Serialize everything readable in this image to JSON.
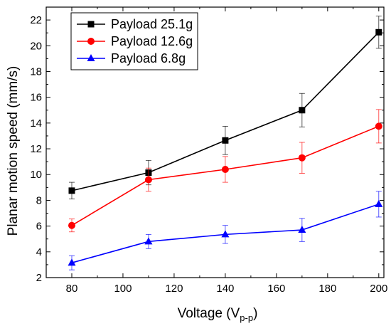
{
  "chart_data": {
    "type": "line",
    "x": [
      80,
      110,
      140,
      170,
      200
    ],
    "xlim": [
      70,
      202
    ],
    "ylim": [
      2,
      23
    ],
    "xticks": [
      80,
      100,
      120,
      140,
      160,
      180,
      200
    ],
    "yticks": [
      2,
      4,
      6,
      8,
      10,
      12,
      14,
      16,
      18,
      20,
      22
    ],
    "ylabel": "Planar motion speed (mm/s)",
    "xlabel": {
      "main": "Voltage (V",
      "sub": "p-p",
      "close": ")"
    },
    "legend_position": "top-left",
    "grid": false,
    "series": [
      {
        "name": "Payload 25.1g",
        "color": "#000000",
        "marker": "square",
        "values": [
          8.75,
          10.15,
          12.65,
          15.0,
          21.05
        ],
        "errors": [
          0.65,
          0.95,
          1.1,
          1.3,
          1.25
        ]
      },
      {
        "name": "Payload 12.6g",
        "color": "#ff0000",
        "marker": "circle",
        "values": [
          6.05,
          9.6,
          10.4,
          11.3,
          13.75
        ],
        "errors": [
          0.5,
          0.9,
          1.0,
          1.2,
          1.3
        ]
      },
      {
        "name": "Payload 6.8g",
        "color": "#0000ff",
        "marker": "triangle",
        "values": [
          3.15,
          4.8,
          5.35,
          5.7,
          7.7
        ],
        "errors": [
          0.55,
          0.55,
          0.7,
          0.9,
          1.0
        ]
      }
    ]
  }
}
